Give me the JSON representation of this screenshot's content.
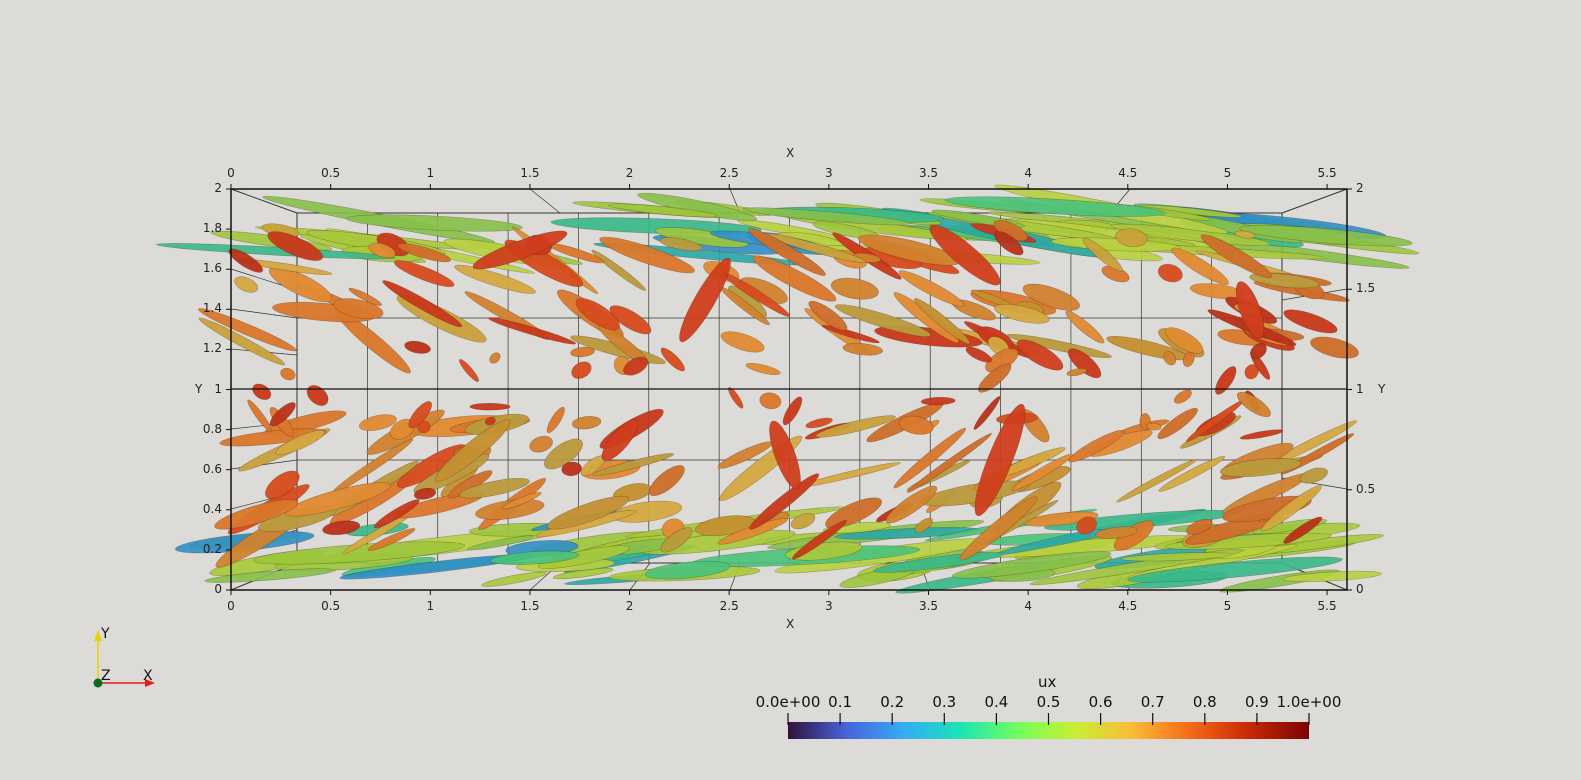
{
  "axes": {
    "x_title_top": "X",
    "x_title_bottom": "X",
    "y_title_left": "Y",
    "y_title_right": "Y",
    "x_ticks": [
      "0",
      "0.5",
      "1",
      "1.5",
      "2",
      "2.5",
      "3",
      "3.5",
      "4",
      "4.5",
      "5",
      "5.5"
    ],
    "y_ticks_left": [
      "0",
      "0.2",
      "0.4",
      "0.6",
      "0.8",
      "1",
      "1.2",
      "1.4",
      "1.6",
      "1.8",
      "2"
    ],
    "y_ticks_right": [
      "0",
      "0.5",
      "1",
      "1.5",
      "2"
    ]
  },
  "orientation_axes": {
    "x_label": "X",
    "y_label": "Y",
    "z_label": "Z",
    "x_color": "#e0201b",
    "y_color": "#e8d300",
    "z_color": "#0c6b1e"
  },
  "colorbar": {
    "title": "ux",
    "tick_labels": [
      "0.0e+00",
      "0.1",
      "0.2",
      "0.3",
      "0.4",
      "0.5",
      "0.6",
      "0.7",
      "0.8",
      "0.9",
      "1.0e+00"
    ],
    "range": [
      0,
      1
    ],
    "colormap": "turbo",
    "colors": [
      "#30123b",
      "#4662d7",
      "#36aaf9",
      "#1ae4b6",
      "#72fe5e",
      "#c7ef34",
      "#fabb39",
      "#f66b19",
      "#cb2a04",
      "#7a0403"
    ]
  },
  "scene": {
    "background": "#dcdbd8",
    "field": "ux"
  }
}
